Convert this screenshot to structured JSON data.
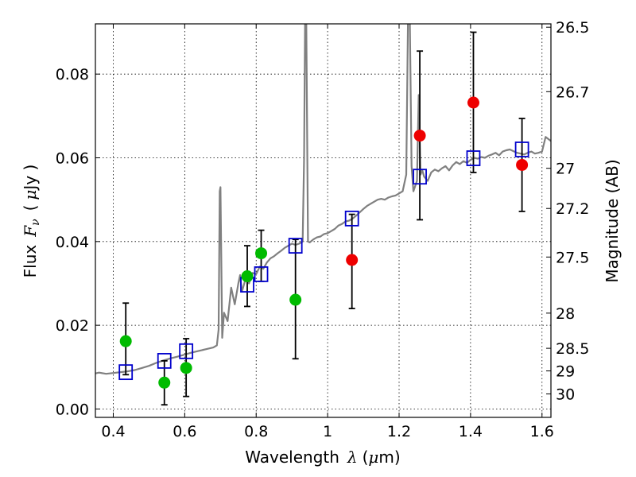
{
  "chart_data": {
    "type": "scatter",
    "xlabel_main": "Wavelength",
    "xlabel_symbol": "λ",
    "xlabel_unit_open": "(",
    "xlabel_unit_mu": "μ",
    "xlabel_unit_rest": "m)",
    "ylabel_main": "Flux",
    "ylabel_symbol": "F",
    "ylabel_sub": "ν",
    "ylabel_unit_open": "(",
    "ylabel_unit_mu": "μ",
    "ylabel_unit_rest": "Jy )",
    "y2label": "Magnitude (AB)",
    "xlim": [
      0.35,
      1.625
    ],
    "ylim": [
      -0.002,
      0.092
    ],
    "xticks": [
      0.4,
      0.6,
      0.8,
      1.0,
      1.2,
      1.4,
      1.6
    ],
    "xtick_labels": [
      "0.4",
      "0.6",
      "0.8",
      "1",
      "1.2",
      "1.4",
      "1.6"
    ],
    "yticks": [
      0.0,
      0.02,
      0.04,
      0.06,
      0.08
    ],
    "ytick_labels": [
      "0.00",
      "0.02",
      "0.04",
      "0.06",
      "0.08"
    ],
    "y2ticks": [
      {
        "label": "26.5",
        "flux": 0.0912
      },
      {
        "label": "26.7",
        "flux": 0.0758
      },
      {
        "label": "27",
        "flux": 0.0575
      },
      {
        "label": "27.2",
        "flux": 0.0479
      },
      {
        "label": "27.5",
        "flux": 0.0363
      },
      {
        "label": "28",
        "flux": 0.0229
      },
      {
        "label": "28.5",
        "flux": 0.0145
      },
      {
        "label": "29",
        "flux": 0.0091
      },
      {
        "label": "30",
        "flux": 0.0036
      }
    ],
    "grid": true,
    "colors": {
      "model": "#808080",
      "model_flat": "#4b4b7a",
      "green": "#00bb00",
      "red": "#ee0000",
      "box": "#0000cc",
      "error": "#000000"
    },
    "model_spectrum": {
      "x": [
        0.35,
        0.36,
        0.38,
        0.4,
        0.42,
        0.44,
        0.46,
        0.48,
        0.5,
        0.52,
        0.54,
        0.56,
        0.58,
        0.6,
        0.62,
        0.64,
        0.66,
        0.68,
        0.69,
        0.695,
        0.698,
        0.7,
        0.705,
        0.71,
        0.72,
        0.73,
        0.74,
        0.75,
        0.755,
        0.76,
        0.77,
        0.78,
        0.79,
        0.8,
        0.81,
        0.82,
        0.83,
        0.84,
        0.85,
        0.86,
        0.87,
        0.88,
        0.89,
        0.9,
        0.91,
        0.92,
        0.93,
        0.934,
        0.937,
        0.94,
        0.945,
        0.95,
        0.96,
        0.97,
        0.98,
        0.99,
        1.0,
        1.01,
        1.02,
        1.03,
        1.04,
        1.05,
        1.06,
        1.07,
        1.08,
        1.09,
        1.1,
        1.11,
        1.12,
        1.13,
        1.14,
        1.15,
        1.16,
        1.17,
        1.18,
        1.19,
        1.2,
        1.21,
        1.22,
        1.225,
        1.23,
        1.235,
        1.24,
        1.25,
        1.255,
        1.26,
        1.265,
        1.27,
        1.28,
        1.29,
        1.3,
        1.31,
        1.32,
        1.33,
        1.34,
        1.35,
        1.36,
        1.37,
        1.38,
        1.39,
        1.4,
        1.41,
        1.42,
        1.43,
        1.44,
        1.45,
        1.46,
        1.47,
        1.48,
        1.49,
        1.5,
        1.51,
        1.52,
        1.53,
        1.54,
        1.55,
        1.56,
        1.57,
        1.58,
        1.59,
        1.6,
        1.61,
        1.625
      ],
      "y": [
        0.0085,
        0.0087,
        0.0084,
        0.0086,
        0.0088,
        0.009,
        0.0093,
        0.0098,
        0.0103,
        0.011,
        0.0116,
        0.0121,
        0.0125,
        0.013,
        0.0135,
        0.0139,
        0.0143,
        0.0147,
        0.0152,
        0.019,
        0.052,
        0.053,
        0.017,
        0.023,
        0.021,
        0.029,
        0.025,
        0.03,
        0.032,
        0.028,
        0.031,
        0.03,
        0.0325,
        0.0322,
        0.034,
        0.0335,
        0.035,
        0.036,
        0.0365,
        0.0372,
        0.0378,
        0.0385,
        0.039,
        0.0395,
        0.0392,
        0.0395,
        0.04,
        0.06,
        0.094,
        0.094,
        0.04,
        0.0398,
        0.0405,
        0.041,
        0.0412,
        0.0418,
        0.042,
        0.0425,
        0.043,
        0.0438,
        0.0442,
        0.0448,
        0.045,
        0.0455,
        0.0462,
        0.047,
        0.0478,
        0.0485,
        0.049,
        0.0495,
        0.05,
        0.0502,
        0.05,
        0.0505,
        0.0508,
        0.051,
        0.0515,
        0.052,
        0.056,
        0.093,
        0.093,
        0.058,
        0.052,
        0.0545,
        0.075,
        0.056,
        0.057,
        0.0555,
        0.0545,
        0.0565,
        0.0572,
        0.0568,
        0.0575,
        0.058,
        0.057,
        0.0582,
        0.059,
        0.0585,
        0.0592,
        0.0588,
        0.0595,
        0.06,
        0.0598,
        0.0602,
        0.06,
        0.0605,
        0.0608,
        0.0612,
        0.0606,
        0.0615,
        0.0618,
        0.062,
        0.0616,
        0.0612,
        0.061,
        0.0608,
        0.0612,
        0.0615,
        0.061,
        0.0612,
        0.0615,
        0.065,
        0.064
      ]
    },
    "green_points": [
      {
        "x": 0.435,
        "y": 0.0162,
        "err": null
      },
      {
        "x": 0.543,
        "y": 0.0063,
        "err": null
      },
      {
        "x": 0.604,
        "y": 0.0098,
        "err": null
      },
      {
        "x": 0.775,
        "y": 0.0317,
        "err": null
      },
      {
        "x": 0.814,
        "y": 0.0372,
        "err": null
      },
      {
        "x": 0.91,
        "y": 0.0261,
        "err": null
      }
    ],
    "red_points": [
      {
        "x": 1.068,
        "y": 0.0356
      },
      {
        "x": 1.258,
        "y": 0.0653
      },
      {
        "x": 1.408,
        "y": 0.0732
      },
      {
        "x": 1.544,
        "y": 0.0583
      }
    ],
    "error_bars": [
      {
        "x": 0.435,
        "low": 0.0082,
        "high": 0.0253
      },
      {
        "x": 0.543,
        "low": 0.001,
        "high": 0.0115
      },
      {
        "x": 0.604,
        "low": 0.003,
        "high": 0.0168
      },
      {
        "x": 0.775,
        "low": 0.0245,
        "high": 0.039
      },
      {
        "x": 0.814,
        "low": 0.0305,
        "high": 0.0427
      },
      {
        "x": 0.91,
        "low": 0.012,
        "high": 0.0405
      },
      {
        "x": 1.068,
        "low": 0.024,
        "high": 0.0465
      },
      {
        "x": 1.258,
        "low": 0.0452,
        "high": 0.0855
      },
      {
        "x": 1.408,
        "low": 0.0565,
        "high": 0.09
      },
      {
        "x": 1.544,
        "low": 0.0472,
        "high": 0.0694
      }
    ],
    "model_boxes": [
      {
        "x": 0.435,
        "y": 0.0088
      },
      {
        "x": 0.543,
        "y": 0.0115
      },
      {
        "x": 0.604,
        "y": 0.0138
      },
      {
        "x": 0.775,
        "y": 0.0297
      },
      {
        "x": 0.814,
        "y": 0.0322
      },
      {
        "x": 0.91,
        "y": 0.039
      },
      {
        "x": 1.068,
        "y": 0.0455
      },
      {
        "x": 1.258,
        "y": 0.0555
      },
      {
        "x": 1.408,
        "y": 0.0599
      },
      {
        "x": 1.544,
        "y": 0.062
      }
    ]
  }
}
